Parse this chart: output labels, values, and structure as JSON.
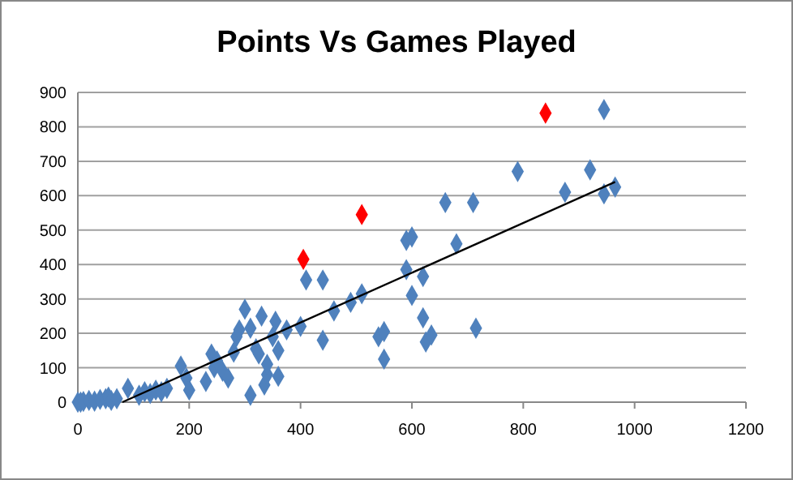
{
  "chart_data": {
    "type": "scatter",
    "title": "Points Vs Games Played",
    "xlim": [
      0,
      1200
    ],
    "xticks": [
      0,
      200,
      400,
      600,
      800,
      1000,
      1200
    ],
    "ylim": [
      0,
      900
    ],
    "yticks": [
      0,
      100,
      200,
      300,
      400,
      500,
      600,
      700,
      800,
      900
    ],
    "grid": "y",
    "marker": "diamond",
    "series": [
      {
        "color": "#4f81bd",
        "x": [
          0,
          5,
          10,
          20,
          30,
          40,
          50,
          55,
          60,
          70,
          90,
          110,
          120,
          130,
          140,
          150,
          160,
          185,
          195,
          200,
          230,
          240,
          245,
          250,
          260,
          270,
          280,
          285,
          290,
          300,
          310,
          310,
          320,
          325,
          330,
          335,
          340,
          340,
          350,
          355,
          360,
          360,
          375,
          400,
          410,
          440,
          440,
          460,
          490,
          510,
          540,
          550,
          550,
          590,
          590,
          600,
          600,
          620,
          620,
          625,
          635,
          660,
          680,
          710,
          715,
          790,
          875,
          920,
          945,
          945,
          965
        ],
        "values": [
          0,
          0,
          2,
          5,
          3,
          8,
          10,
          15,
          5,
          10,
          40,
          20,
          30,
          25,
          35,
          30,
          40,
          105,
          70,
          35,
          60,
          140,
          100,
          120,
          90,
          70,
          145,
          190,
          210,
          270,
          215,
          20,
          155,
          140,
          250,
          50,
          80,
          110,
          190,
          235,
          150,
          75,
          210,
          220,
          355,
          180,
          355,
          265,
          290,
          315,
          190,
          205,
          125,
          470,
          385,
          480,
          310,
          245,
          365,
          175,
          195,
          580,
          460,
          580,
          215,
          670,
          610,
          675,
          850,
          605,
          625
        ]
      },
      {
        "color": "#ff0000",
        "x": [
          405,
          510,
          840
        ],
        "values": [
          415,
          545,
          840
        ]
      },
      {
        "type": "line",
        "color": "#000000",
        "marker": "none",
        "x": [
          80,
          965
        ],
        "values": [
          0,
          640
        ]
      }
    ]
  }
}
